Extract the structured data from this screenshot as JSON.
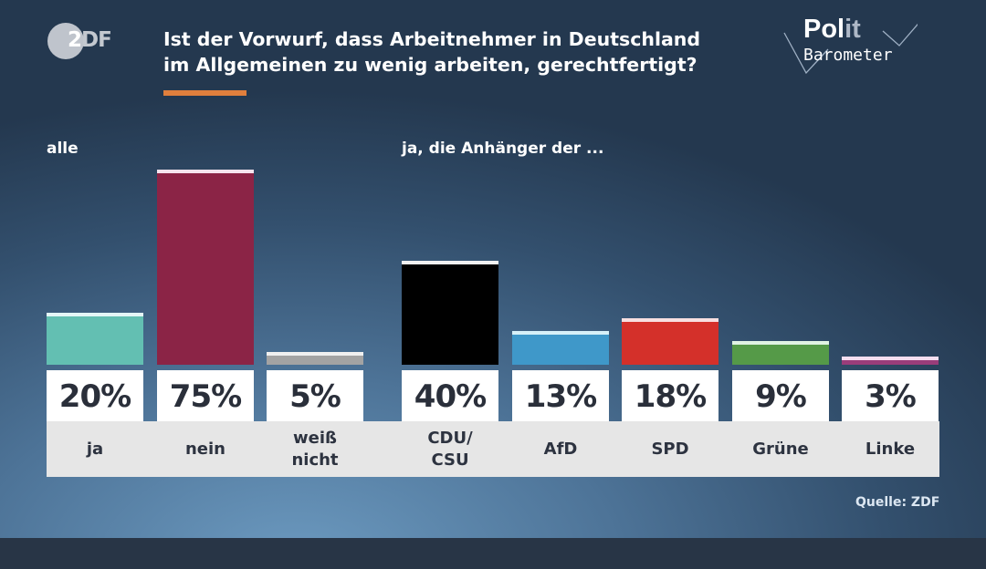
{
  "branding": {
    "broadcaster_logo": "ZDF",
    "broadcaster_logo_parts": [
      "2",
      "DF"
    ],
    "show_logo_top": "Polit",
    "show_logo_top_parts": [
      "Pol",
      "it"
    ],
    "show_logo_bottom": "Barometer",
    "accent_color": "#e07f3d"
  },
  "header": {
    "title_lines": [
      "Ist der Vorwurf, dass Arbeitnehmer in Deutschland",
      "im Allgemeinen zu wenig arbeiten, gerechtfertigt?"
    ]
  },
  "groups": {
    "all_label": "alle",
    "party_label": "ja, die Anhänger der ..."
  },
  "source": "Quelle: ZDF",
  "chart_data": {
    "type": "bar",
    "title": "Ist der Vorwurf, dass Arbeitnehmer in Deutschland im Allgemeinen zu wenig arbeiten, gerechtfertigt?",
    "xlabel": "",
    "ylabel": "",
    "unit": "%",
    "grid": false,
    "legend": "none",
    "ylim": [
      0,
      100
    ],
    "panels": [
      {
        "name": "alle",
        "categories": [
          "ja",
          "nein",
          "weiß\nnicht"
        ],
        "values": [
          20,
          75,
          5
        ],
        "value_labels": [
          "20%",
          "75%",
          "5%"
        ],
        "colors": [
          "#63bfb2",
          "#8b2446",
          "#a3a3a3"
        ],
        "cap_colors": [
          "#e4f6f6",
          "#f6e4ee",
          "#f0f0f0"
        ]
      },
      {
        "name": "ja, die Anhänger der ...",
        "categories": [
          "CDU/\nCSU",
          "AfD",
          "SPD",
          "Grüne",
          "Linke"
        ],
        "values": [
          40,
          13,
          18,
          9,
          3
        ],
        "value_labels": [
          "40%",
          "13%",
          "18%",
          "9%",
          "3%"
        ],
        "colors": [
          "#000000",
          "#3f98c9",
          "#d4302a",
          "#559a48",
          "#9a3d7a"
        ],
        "cap_colors": [
          "#f2f2f2",
          "#d6f0f8",
          "#f8dfe0",
          "#e0f3e3",
          "#f6def0"
        ]
      }
    ],
    "source": "Quelle: ZDF"
  }
}
